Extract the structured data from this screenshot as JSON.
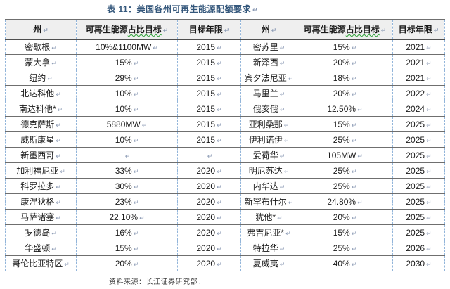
{
  "title": {
    "text": "表 11：美国各州可再生能源配额要求"
  },
  "source": {
    "text": "资料来源：长江证券研究部"
  },
  "marks": {
    "return_mark": "↵",
    "footer_mark": "."
  },
  "colors": {
    "title_color": "#35587C",
    "grid_line": "#6F6F6F",
    "header_bottom_line": "#4F4F4F",
    "column_dash": "#92B5DA",
    "grammar_squiggle": "#2BA135",
    "header_background": "#EFEFEF",
    "formatting_mark": "#8C9BB5"
  },
  "table": {
    "headers": [
      {
        "text": "州"
      },
      {
        "text": "可再生能源",
        "underlined": "占比目标"
      },
      {
        "text": "目标年限"
      },
      {
        "text": "州"
      },
      {
        "text": "可再生能源",
        "underlined": "占比目标"
      },
      {
        "text": "目标年限"
      }
    ],
    "column_names": [
      "state-cell",
      "target-cell",
      "year-cell",
      "state-cell",
      "target-cell",
      "year-cell"
    ],
    "rows": [
      [
        "密歇根",
        "10%&1100MW",
        "2015",
        "密苏里",
        "15%",
        "2021"
      ],
      [
        "蒙大拿",
        "15%",
        "2015",
        "新泽西",
        "20%",
        "2021"
      ],
      [
        "纽约",
        "29%",
        "2015",
        "宾夕法尼亚",
        "18%",
        "2021"
      ],
      [
        "北达科他",
        "10%",
        "2015",
        "马里兰",
        "20%",
        "2022"
      ],
      [
        "南达科他*",
        "10%",
        "2015",
        "俄亥俄",
        "12.50%",
        "2024"
      ],
      [
        "德克萨斯",
        "5880MW",
        "2015",
        "亚利桑那",
        "15%",
        "2025"
      ],
      [
        "威斯康星",
        "10%",
        "2015",
        "伊利诺伊",
        "25%",
        "2025"
      ],
      [
        "新墨西哥",
        "",
        "",
        "爱荷华",
        "105MW",
        "2025"
      ],
      [
        "加利福尼亚",
        "33%",
        "2020",
        "明尼苏达",
        "25%",
        "2025"
      ],
      [
        "科罗拉多",
        "30%",
        "2020",
        "内华达",
        "25%",
        "2025"
      ],
      [
        "康涅狄格",
        "23%",
        "2020",
        "新罕布什尔",
        "24.80%",
        "2025"
      ],
      [
        "马萨诸塞",
        "22.10%",
        "2020",
        "犹他*",
        "20%",
        "2025"
      ],
      [
        "罗德岛",
        "16%",
        "2020",
        "弗吉尼亚*",
        "15%",
        "2025"
      ],
      [
        "华盛顿",
        "15%",
        "2020",
        "特拉华",
        "25%",
        "2026"
      ],
      [
        "哥伦比亚特区",
        "20%",
        "2020",
        "夏威夷",
        "40%",
        "2030"
      ]
    ]
  }
}
